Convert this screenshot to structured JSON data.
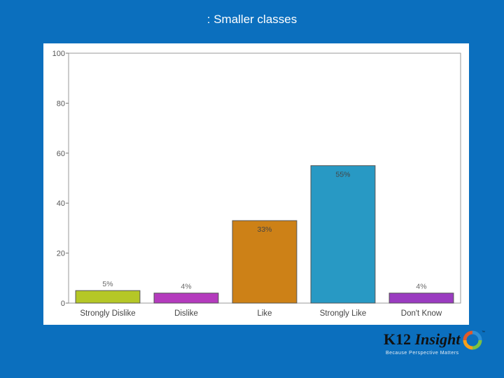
{
  "slide": {
    "title": ": Smaller classes"
  },
  "logo": {
    "name_part1": "K12",
    "name_part2": "Insight",
    "trademark": "™",
    "tagline": "Because Perspective Matters"
  },
  "colors": {
    "background": "#0b6fbe",
    "panel": "#ffffff",
    "bars": [
      "#b5c726",
      "#b43bbd",
      "#cd8117",
      "#2899c4",
      "#9a3cc0"
    ],
    "logo_ring": [
      "#2e8fd6",
      "#7cc242",
      "#f6a01a",
      "#e05a2a"
    ]
  },
  "chart_data": {
    "type": "bar",
    "categories": [
      "Strongly Dislike",
      "Dislike",
      "Like",
      "Strongly Like",
      "Don't Know"
    ],
    "values": [
      5,
      4,
      33,
      55,
      4
    ],
    "data_labels": [
      "5%",
      "4%",
      "33%",
      "55%",
      "4%"
    ],
    "y_ticks": [
      "0",
      "20",
      "40",
      "60",
      "80",
      "100"
    ],
    "ylim": [
      0,
      100
    ],
    "grid": false,
    "legend": "none"
  }
}
